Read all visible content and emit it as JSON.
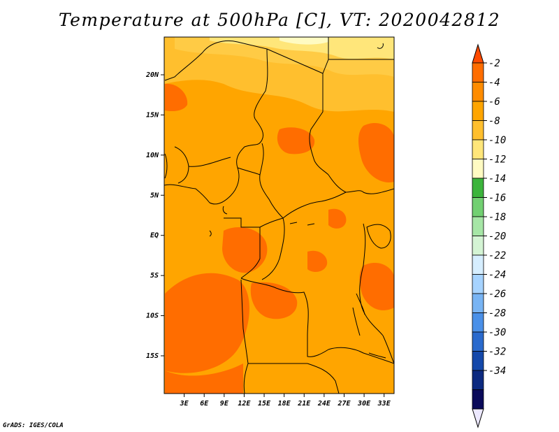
{
  "chart_data": {
    "type": "heatmap",
    "title": "Temperature at 500hPa [C], VT: 2020042812",
    "variable": "Temperature",
    "level": "500hPa",
    "units": "C",
    "valid_time": "2020042812",
    "x_ticks": [
      "3E",
      "6E",
      "9E",
      "12E",
      "15E",
      "18E",
      "21E",
      "24E",
      "27E",
      "30E",
      "33E"
    ],
    "x_tick_values": [
      3,
      6,
      9,
      12,
      15,
      18,
      21,
      24,
      27,
      30,
      33
    ],
    "y_ticks": [
      "20N",
      "15N",
      "10N",
      "5N",
      "EQ",
      "5S",
      "10S",
      "15S"
    ],
    "y_tick_values": [
      20,
      15,
      10,
      5,
      0,
      -5,
      -10,
      -15
    ],
    "xlim": [
      0,
      34.5
    ],
    "ylim": [
      -19.7,
      24.7
    ],
    "colorbar": {
      "labels": [
        "-2",
        "-4",
        "-6",
        "-8",
        "-10",
        "-12",
        "-14",
        "-16",
        "-18",
        "-20",
        "-22",
        "-24",
        "-26",
        "-28",
        "-30",
        "-32",
        "-34"
      ],
      "colors": [
        "#ff6d00",
        "#ff8c00",
        "#ffa500",
        "#ffbf2e",
        "#ffe67a",
        "#fffbc2",
        "#3cb43c",
        "#72d072",
        "#a6e6a6",
        "#d4f4d4",
        "#d6eeff",
        "#a6d3ff",
        "#78b4f4",
        "#4a90e8",
        "#2a6acd",
        "#1448aa",
        "#0c2a80",
        "#0a0a5a"
      ],
      "over_color": "#ff4a00",
      "under_color": "#ece8ff"
    },
    "field_note": "Map filled mostly with -4 to -6 C (orange); -2 to -4 C (dark orange) over southern Angola, Gabon/Congo and central Sahel; -6 to -10 C (light orange/yellow) over northern Chad and Libya."
  },
  "footer": "GrADS: IGES/COLA"
}
